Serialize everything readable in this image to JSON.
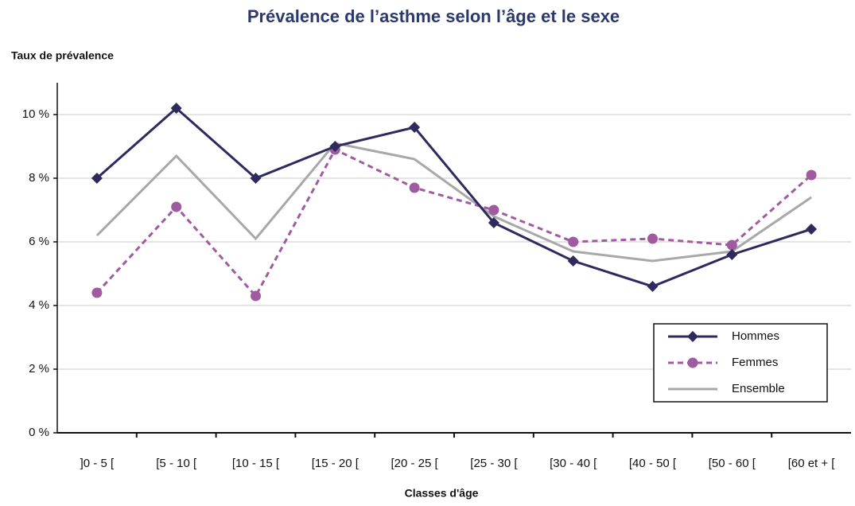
{
  "chart_data": {
    "type": "line",
    "title": "Prévalence de l’asthme selon l’âge et le sexe",
    "y_label": "Taux de prévalence",
    "x_label": "Classes d'âge",
    "categories": [
      "]0 - 5 [",
      "[5 - 10 [",
      "[10 - 15 [",
      "[15 - 20 [",
      "[20 - 25 [",
      "[25 - 30 [",
      "[30 - 40 [",
      "[40 - 50 [",
      "[50 - 60 [",
      "[60 et + ["
    ],
    "series": [
      {
        "name": "Hommes",
        "color": "#2e2a5e",
        "marker": "diamond",
        "dash": false,
        "values": [
          8.0,
          10.2,
          8.0,
          9.0,
          9.6,
          6.6,
          5.4,
          4.6,
          5.6,
          6.4
        ]
      },
      {
        "name": "Femmes",
        "color": "#a05ba0",
        "marker": "circle",
        "dash": true,
        "values": [
          4.4,
          7.1,
          4.3,
          8.9,
          7.7,
          7.0,
          6.0,
          6.1,
          5.9,
          8.1
        ]
      },
      {
        "name": "Ensemble",
        "color": "#a8a8a8",
        "marker": "none",
        "dash": false,
        "values": [
          6.2,
          8.7,
          6.1,
          9.1,
          8.6,
          6.8,
          5.7,
          5.4,
          5.7,
          7.4
        ]
      }
    ],
    "ylim": [
      0,
      11
    ],
    "yticks": [
      {
        "value": 0,
        "label": "0 %"
      },
      {
        "value": 2,
        "label": "2 %"
      },
      {
        "value": 4,
        "label": "4 %"
      },
      {
        "value": 6,
        "label": "6 %"
      },
      {
        "value": 8,
        "label": "8 %"
      },
      {
        "value": 10,
        "label": "10 %"
      }
    ],
    "grid": true,
    "legend": "lower right"
  }
}
